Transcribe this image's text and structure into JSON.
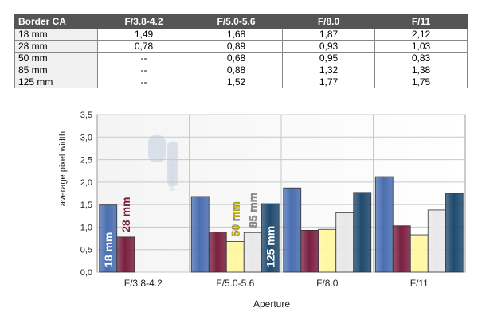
{
  "table": {
    "headers": [
      "Border CA",
      "F/3.8-4.2",
      "F/5.0-5.6",
      "F/8.0",
      "F/11"
    ],
    "rows": [
      [
        "18 mm",
        "1,49",
        "1,68",
        "1,87",
        "2,12"
      ],
      [
        "28 mm",
        "0,78",
        "0,89",
        "0,93",
        "1,03"
      ],
      [
        "50 mm",
        "--",
        "0,68",
        "0,95",
        "0,83"
      ],
      [
        "85 mm",
        "--",
        "0,88",
        "1,32",
        "1,38"
      ],
      [
        "125 mm",
        "--",
        "1,52",
        "1,77",
        "1,75"
      ]
    ]
  },
  "chart_data": {
    "type": "bar",
    "categories": [
      "F/3.8-4.2",
      "F/5.0-5.6",
      "F/8.0",
      "F/11"
    ],
    "series": [
      {
        "name": "18 mm",
        "values": [
          1.49,
          1.68,
          1.87,
          2.12
        ],
        "color": "#4a6fb0"
      },
      {
        "name": "28 mm",
        "values": [
          0.78,
          0.89,
          0.93,
          1.03
        ],
        "color": "#7a2040"
      },
      {
        "name": "50 mm",
        "values": [
          null,
          0.68,
          0.95,
          0.83
        ],
        "color": "#fff7a0"
      },
      {
        "name": "85 mm",
        "values": [
          null,
          0.88,
          1.32,
          1.38
        ],
        "color": "#e8e8e8"
      },
      {
        "name": "125 mm",
        "values": [
          null,
          1.52,
          1.77,
          1.75
        ],
        "color": "#1f4a6e"
      }
    ],
    "xlabel": "Aperture",
    "ylabel": "average pixel width",
    "ylim": [
      0,
      3.5
    ],
    "yticks": [
      "0,0",
      "0,5",
      "1,0",
      "1,5",
      "2,0",
      "2,5",
      "3,0",
      "3,5"
    ],
    "grid": true,
    "legend": "labels on the first bar of each series"
  },
  "watermark": "photozone"
}
